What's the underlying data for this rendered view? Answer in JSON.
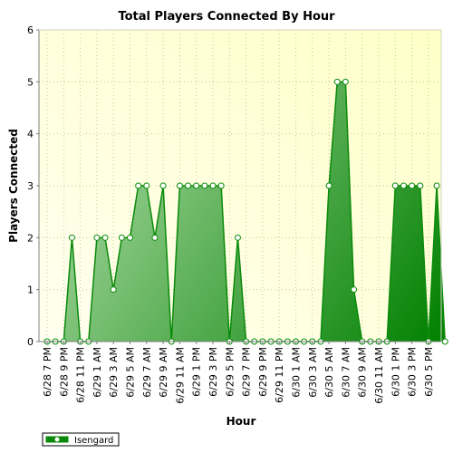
{
  "colors": {
    "plot_bg_light": "#fffff0",
    "plot_bg_dark": "#ffffc8",
    "grid": "#c8c8a0",
    "line": "#0a8a0a",
    "fill_light": "#b8e0b0",
    "fill_dark": "#008000",
    "marker_fill": "#ffffff"
  },
  "chart_data": {
    "type": "area",
    "title": "Total Players Connected By Hour",
    "xlabel": "Hour",
    "ylabel": "Players Connected",
    "ylim": [
      0,
      6
    ],
    "yticks": [
      0,
      1,
      2,
      3,
      4,
      5,
      6
    ],
    "grid": true,
    "legend_position": "bottom-left",
    "x_tick_labels": [
      "6/28 7 PM",
      "6/28 9 PM",
      "6/28 11 PM",
      "6/29 1 AM",
      "6/29 3 AM",
      "6/29 5 AM",
      "6/29 7 AM",
      "6/29 9 AM",
      "6/29 11 AM",
      "6/29 1 PM",
      "6/29 3 PM",
      "6/29 5 PM",
      "6/29 7 PM",
      "6/29 9 PM",
      "6/29 11 PM",
      "6/30 1 AM",
      "6/30 3 AM",
      "6/30 5 AM",
      "6/30 7 AM",
      "6/30 9 AM",
      "6/30 11 AM",
      "6/30 1 PM",
      "6/30 3 PM",
      "6/30 5 PM"
    ],
    "series": [
      {
        "name": "Isengard",
        "values": [
          0,
          0,
          0,
          2,
          0,
          0,
          2,
          2,
          1,
          2,
          2,
          3,
          3,
          2,
          3,
          0,
          3,
          3,
          3,
          3,
          3,
          3,
          0,
          2,
          0,
          0,
          0,
          0,
          0,
          0,
          0,
          0,
          0,
          0,
          3,
          5,
          5,
          1,
          0,
          0,
          0,
          0,
          3,
          3,
          3,
          3,
          0,
          3,
          0
        ]
      }
    ]
  }
}
